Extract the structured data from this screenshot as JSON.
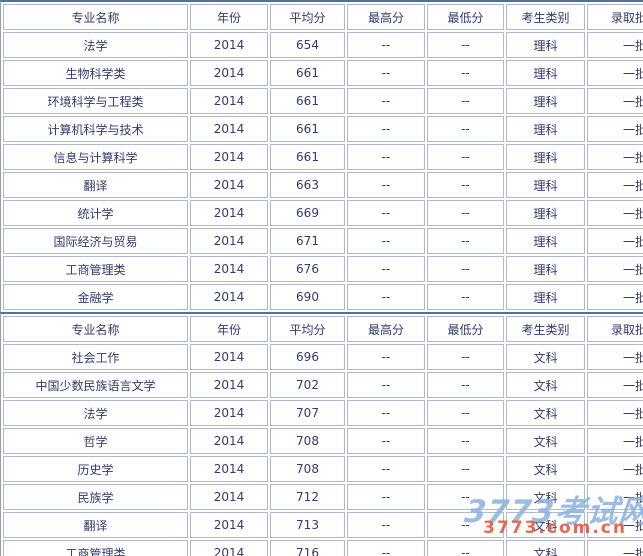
{
  "header_columns": [
    "专业名称",
    "年份",
    "平均分",
    "最高分",
    "最低分",
    "考生类别",
    "录取批次"
  ],
  "tables": [
    {
      "candidate_category": "理科",
      "rows": [
        [
          "法学",
          "2014",
          "654",
          "--",
          "--",
          "理科",
          "一批"
        ],
        [
          "生物科学类",
          "2014",
          "661",
          "--",
          "--",
          "理科",
          "一批"
        ],
        [
          "环境科学与工程类",
          "2014",
          "661",
          "--",
          "--",
          "理科",
          "一批"
        ],
        [
          "计算机科学与技术",
          "2014",
          "661",
          "--",
          "--",
          "理科",
          "一批"
        ],
        [
          "信息与计算科学",
          "2014",
          "661",
          "--",
          "--",
          "理科",
          "一批"
        ],
        [
          "翻译",
          "2014",
          "663",
          "--",
          "--",
          "理科",
          "一批"
        ],
        [
          "统计学",
          "2014",
          "669",
          "--",
          "--",
          "理科",
          "一批"
        ],
        [
          "国际经济与贸易",
          "2014",
          "671",
          "--",
          "--",
          "理科",
          "一批"
        ],
        [
          "工商管理类",
          "2014",
          "676",
          "--",
          "--",
          "理科",
          "一批"
        ],
        [
          "金融学",
          "2014",
          "690",
          "--",
          "--",
          "理科",
          "一批"
        ]
      ]
    },
    {
      "candidate_category": "文科",
      "rows": [
        [
          "社会工作",
          "2014",
          "696",
          "--",
          "--",
          "文科",
          "一批"
        ],
        [
          "中国少数民族语言文学",
          "2014",
          "702",
          "--",
          "--",
          "文科",
          "一批"
        ],
        [
          "法学",
          "2014",
          "707",
          "--",
          "--",
          "文科",
          "一批"
        ],
        [
          "哲学",
          "2014",
          "708",
          "--",
          "--",
          "文科",
          "一批"
        ],
        [
          "历史学",
          "2014",
          "708",
          "--",
          "--",
          "文科",
          "一批"
        ],
        [
          "民族学",
          "2014",
          "712",
          "--",
          "--",
          "文科",
          "一批"
        ],
        [
          "翻译",
          "2014",
          "713",
          "--",
          "--",
          "文科",
          "一批"
        ],
        [
          "工商管理类",
          "2014",
          "716",
          "--",
          "--",
          "文科",
          "一批"
        ]
      ]
    }
  ],
  "watermark": {
    "site_name": "3773考试网",
    "site_url": "3773.com.cn"
  },
  "colors": {
    "text": "#323b6d",
    "cell_border": "#aebacd",
    "outer_border": "#50709a",
    "watermark_blue": "#8ab2de",
    "watermark_red": "#e9543e"
  }
}
